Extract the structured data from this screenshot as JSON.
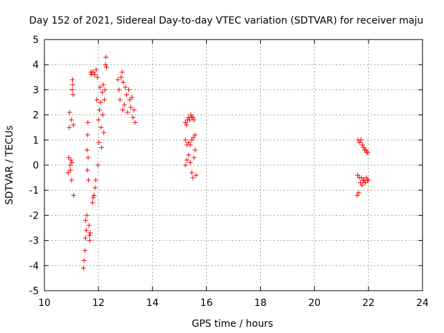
{
  "chart_data": {
    "type": "scatter",
    "title": "Day 152 of 2021, Sidereal Day-to-day VTEC variation (SDTVAR) for receiver maju",
    "xlabel": "GPS time / hours",
    "ylabel": "SDTVAR / TECUs",
    "xlim": [
      10,
      24
    ],
    "ylim": [
      -5,
      5
    ],
    "xticks": [
      10,
      12,
      14,
      16,
      18,
      20,
      22,
      24
    ],
    "yticks": [
      -5,
      -4,
      -3,
      -2,
      -1,
      0,
      1,
      2,
      3,
      4,
      5
    ],
    "xtick_labels": [
      "10",
      "12",
      "14",
      "16",
      "18",
      "20",
      "22",
      "24"
    ],
    "ytick_labels": [
      "-5",
      "-4",
      "-3",
      "-2",
      "-1",
      "0",
      "1",
      "2",
      "3",
      "4",
      "5"
    ],
    "grid": true,
    "marker": "+",
    "color": "#ff0000",
    "series": [
      {
        "name": "SDTVAR",
        "points": [
          [
            10.88,
            -0.3
          ],
          [
            10.9,
            0.3
          ],
          [
            10.92,
            1.5
          ],
          [
            10.93,
            2.1
          ],
          [
            10.95,
            0.0
          ],
          [
            10.96,
            -0.2
          ],
          [
            10.98,
            0.2
          ],
          [
            11.0,
            1.8
          ],
          [
            11.01,
            -0.6
          ],
          [
            11.02,
            0.1
          ],
          [
            11.03,
            3.0
          ],
          [
            11.04,
            3.4
          ],
          [
            11.05,
            3.2
          ],
          [
            11.06,
            2.8
          ],
          [
            11.07,
            1.6
          ],
          [
            11.08,
            -1.2
          ],
          [
            11.45,
            -4.1
          ],
          [
            11.47,
            -3.8
          ],
          [
            11.5,
            -3.4
          ],
          [
            11.52,
            -2.9
          ],
          [
            11.53,
            -2.2
          ],
          [
            11.55,
            -2.6
          ],
          [
            11.57,
            -2.0
          ],
          [
            11.58,
            0.6
          ],
          [
            11.59,
            -0.2
          ],
          [
            11.6,
            1.2
          ],
          [
            11.61,
            1.7
          ],
          [
            11.62,
            0.3
          ],
          [
            11.63,
            -0.6
          ],
          [
            11.65,
            -2.4
          ],
          [
            11.67,
            -2.8
          ],
          [
            11.68,
            -3.0
          ],
          [
            11.7,
            -2.7
          ],
          [
            11.72,
            3.7
          ],
          [
            11.74,
            3.6
          ],
          [
            11.76,
            3.7
          ],
          [
            11.78,
            -1.5
          ],
          [
            11.8,
            -1.3
          ],
          [
            11.82,
            3.7
          ],
          [
            11.84,
            -1.2
          ],
          [
            11.86,
            3.6
          ],
          [
            11.88,
            -0.9
          ],
          [
            11.9,
            -0.6
          ],
          [
            11.92,
            3.8
          ],
          [
            11.94,
            2.6
          ],
          [
            11.96,
            3.5
          ],
          [
            11.98,
            0.0
          ],
          [
            12.0,
            1.8
          ],
          [
            12.02,
            0.9
          ],
          [
            12.04,
            2.2
          ],
          [
            12.06,
            3.1
          ],
          [
            12.08,
            2.5
          ],
          [
            12.1,
            1.5
          ],
          [
            12.12,
            0.7
          ],
          [
            12.14,
            2.9
          ],
          [
            12.16,
            2.0
          ],
          [
            12.18,
            3.2
          ],
          [
            12.2,
            1.3
          ],
          [
            12.22,
            2.6
          ],
          [
            12.24,
            3.0
          ],
          [
            12.26,
            4.0
          ],
          [
            12.28,
            4.3
          ],
          [
            12.3,
            3.9
          ],
          [
            12.72,
            3.4
          ],
          [
            12.76,
            3.0
          ],
          [
            12.8,
            2.6
          ],
          [
            12.84,
            3.5
          ],
          [
            12.88,
            3.7
          ],
          [
            12.9,
            2.2
          ],
          [
            12.92,
            3.3
          ],
          [
            12.96,
            2.4
          ],
          [
            13.0,
            3.1
          ],
          [
            13.04,
            2.8
          ],
          [
            13.08,
            2.1
          ],
          [
            13.12,
            3.0
          ],
          [
            13.16,
            2.6
          ],
          [
            13.2,
            2.3
          ],
          [
            13.24,
            2.7
          ],
          [
            13.28,
            1.9
          ],
          [
            13.32,
            2.2
          ],
          [
            13.36,
            1.7
          ],
          [
            15.22,
            1.7
          ],
          [
            15.26,
            1.6
          ],
          [
            15.3,
            1.8
          ],
          [
            15.34,
            1.9
          ],
          [
            15.38,
            1.8
          ],
          [
            15.42,
            2.0
          ],
          [
            15.46,
            1.9
          ],
          [
            15.5,
            1.9
          ],
          [
            15.54,
            1.8
          ],
          [
            15.22,
            1.0
          ],
          [
            15.28,
            0.8
          ],
          [
            15.34,
            0.9
          ],
          [
            15.4,
            0.8
          ],
          [
            15.46,
            1.0
          ],
          [
            15.52,
            1.1
          ],
          [
            15.58,
            1.2
          ],
          [
            15.22,
            0.0
          ],
          [
            15.28,
            0.2
          ],
          [
            15.34,
            0.4
          ],
          [
            15.4,
            0.1
          ],
          [
            15.46,
            -0.3
          ],
          [
            15.5,
            -0.5
          ],
          [
            15.54,
            0.3
          ],
          [
            15.58,
            0.6
          ],
          [
            15.62,
            -0.4
          ],
          [
            21.58,
            -1.2
          ],
          [
            21.6,
            -0.4
          ],
          [
            21.62,
            1.0
          ],
          [
            21.64,
            -1.1
          ],
          [
            21.66,
            -0.5
          ],
          [
            21.68,
            0.9
          ],
          [
            21.7,
            -0.7
          ],
          [
            21.72,
            1.0
          ],
          [
            21.74,
            -0.5
          ],
          [
            21.76,
            -0.8
          ],
          [
            21.78,
            0.8
          ],
          [
            21.8,
            -0.6
          ],
          [
            21.82,
            0.7
          ],
          [
            21.84,
            -0.6
          ],
          [
            21.86,
            0.6
          ],
          [
            21.88,
            -0.7
          ],
          [
            21.9,
            0.6
          ],
          [
            21.92,
            -0.5
          ],
          [
            21.94,
            0.5
          ],
          [
            21.96,
            -0.6
          ],
          [
            21.98,
            0.5
          ],
          [
            22.0,
            -0.6
          ]
        ]
      }
    ]
  }
}
